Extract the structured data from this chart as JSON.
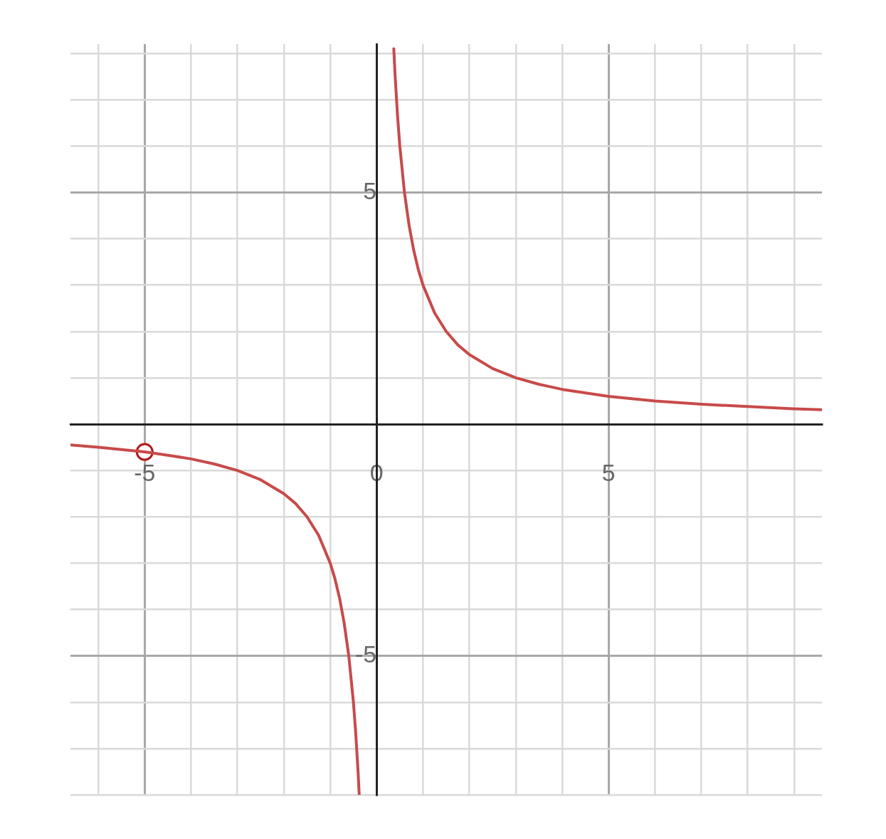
{
  "chart_data": {
    "type": "line",
    "xlim": [
      -6.6,
      9.6
    ],
    "ylim": [
      -8,
      8.2
    ],
    "xticks": [
      {
        "value": -6,
        "label": null
      },
      {
        "value": -5,
        "label": "-5"
      },
      {
        "value": -4,
        "label": null
      },
      {
        "value": -3,
        "label": null
      },
      {
        "value": -2,
        "label": null
      },
      {
        "value": -1,
        "label": null
      },
      0,
      {
        "value": 1,
        "label": null
      },
      {
        "value": 2,
        "label": null
      },
      {
        "value": 3,
        "label": null
      },
      {
        "value": 4,
        "label": null
      },
      5,
      {
        "value": 6,
        "label": null
      },
      {
        "value": 7,
        "label": null
      },
      {
        "value": 8,
        "label": null
      },
      {
        "value": 9,
        "label": null
      }
    ],
    "yticks": [
      {
        "value": -8,
        "label": null
      },
      {
        "value": -7,
        "label": null
      },
      {
        "value": -6,
        "label": null
      },
      {
        "value": -5,
        "label": "-5"
      },
      {
        "value": -4,
        "label": null
      },
      {
        "value": -3,
        "label": null
      },
      {
        "value": -2,
        "label": null
      },
      {
        "value": -1,
        "label": null
      },
      {
        "value": 0,
        "label": null
      },
      {
        "value": 1,
        "label": null
      },
      {
        "value": 2,
        "label": null
      },
      {
        "value": 3,
        "label": null
      },
      {
        "value": 4,
        "label": null
      },
      5,
      {
        "value": 6,
        "label": null
      },
      {
        "value": 7,
        "label": null
      },
      {
        "value": 8,
        "label": null
      }
    ],
    "grid": true,
    "legend": false,
    "series": [
      {
        "type": "line",
        "color": "#c84a4a",
        "x": [
          -6.6,
          -6,
          -5.5,
          -5,
          -4.5,
          -4,
          -3.5,
          -3,
          -2.5,
          -2,
          -1.75,
          -1.5,
          -1.25,
          -1,
          -0.9,
          -0.8,
          -0.7,
          -0.6,
          -0.5,
          -0.45,
          -0.4,
          -0.375,
          0,
          0.37,
          0.4,
          0.45,
          0.5,
          0.6,
          0.7,
          0.8,
          0.9,
          1,
          1.25,
          1.5,
          1.75,
          2,
          2.5,
          3,
          3.5,
          4,
          5,
          6,
          7,
          8,
          9,
          9.6
        ],
        "values": [
          -0.45,
          -0.5,
          -0.55,
          -0.6,
          -0.67,
          -0.75,
          -0.86,
          -1,
          -1.2,
          -1.5,
          -1.71,
          -2,
          -2.4,
          -3,
          -3.33,
          -3.75,
          -4.29,
          -5,
          -6,
          -6.67,
          -7.5,
          -8,
          null,
          8.1,
          7.5,
          6.67,
          6,
          5,
          4.29,
          3.75,
          3.33,
          3,
          2.4,
          2,
          1.71,
          1.5,
          1.2,
          1,
          0.86,
          0.75,
          0.6,
          0.5,
          0.43,
          0.38,
          0.33,
          0.31
        ]
      },
      {
        "type": "scatter",
        "color": "#b01818",
        "marker": "circle",
        "x": [
          -5
        ],
        "values": [
          -0.6
        ]
      }
    ]
  }
}
